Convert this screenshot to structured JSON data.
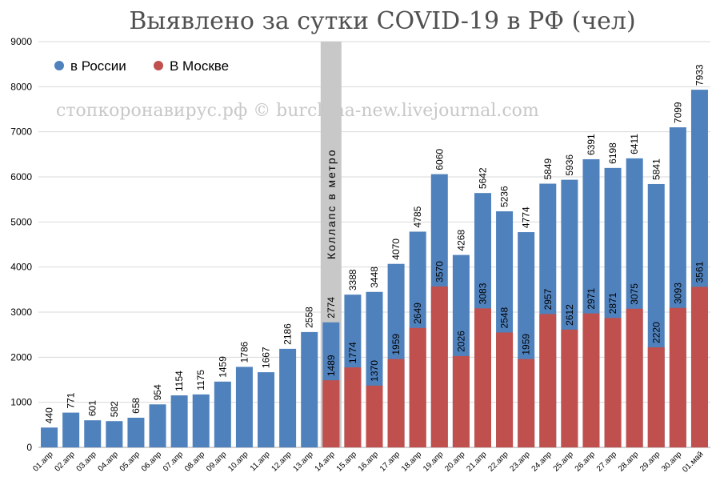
{
  "chart_data": {
    "type": "bar",
    "title": "Выявлено за сутки COVID-19 в РФ (чел)",
    "watermark": "стопкоронавирус.рф © burckina-new.livejournal.com",
    "annotation": {
      "text": "Коллапс в метро",
      "category": "14.апр"
    },
    "ylim": [
      0,
      9000
    ],
    "y_ticks": [
      0,
      1000,
      2000,
      3000,
      4000,
      5000,
      6000,
      7000,
      8000,
      9000
    ],
    "grid": true,
    "legend_position": "top-left",
    "categories": [
      "01.апр",
      "02.апр",
      "03.апр",
      "04.апр",
      "05.апр",
      "06.апр",
      "07.апр",
      "08.апр",
      "09.апр",
      "10.апр",
      "11.апр",
      "12.апр",
      "13.апр",
      "14.апр",
      "15.апр",
      "16.апр",
      "17.апр",
      "18.апр",
      "19.апр",
      "20.апр",
      "21.апр",
      "22.апр",
      "23.апр",
      "24.апр",
      "25.апр",
      "26.апр",
      "27.апр",
      "28.апр",
      "29.апр",
      "30.апр",
      "01.май"
    ],
    "series": [
      {
        "name": "в России",
        "color": "#4f81bd",
        "values": [
          440,
          771,
          601,
          582,
          658,
          954,
          1154,
          1175,
          1459,
          1786,
          1667,
          2186,
          2558,
          2774,
          3388,
          3448,
          4070,
          4785,
          6060,
          4268,
          5642,
          5236,
          4774,
          5849,
          5936,
          6391,
          6198,
          6411,
          5841,
          7099,
          7933
        ]
      },
      {
        "name": "В Москве",
        "color": "#c0504d",
        "values": [
          null,
          null,
          null,
          null,
          null,
          null,
          null,
          null,
          null,
          null,
          null,
          null,
          null,
          1489,
          1774,
          1370,
          1959,
          2649,
          3570,
          2026,
          3083,
          2548,
          1959,
          2957,
          2612,
          2971,
          2871,
          3075,
          2220,
          3093,
          3561
        ]
      }
    ]
  }
}
